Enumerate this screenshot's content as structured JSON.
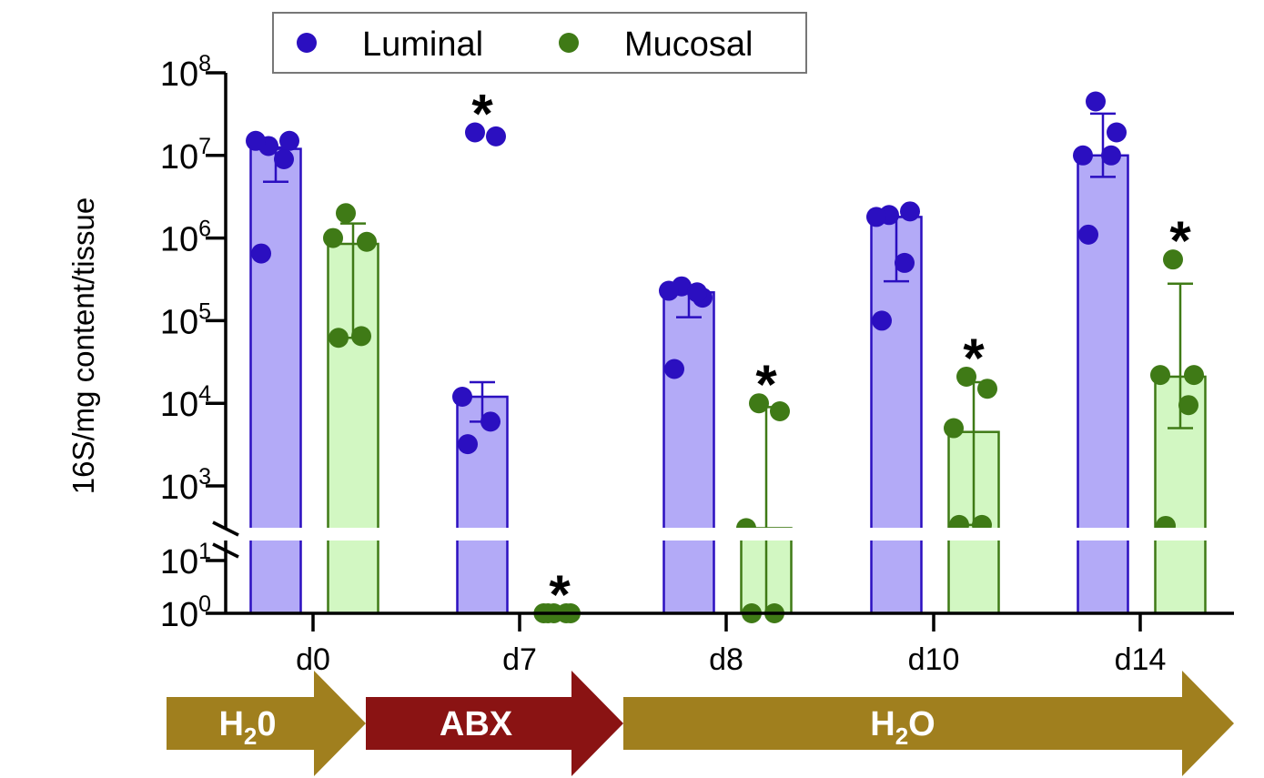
{
  "chart_data": {
    "type": "bar",
    "title": "",
    "xlabel": "",
    "ylabel": "16S/mg content/tissue",
    "yscale": "log",
    "axis_break": true,
    "upper_segment_range": [
      1000,
      100000000
    ],
    "lower_segment_range": [
      1,
      10
    ],
    "ytick_labels": [
      {
        "base": "10",
        "exp": "8",
        "value": 100000000
      },
      {
        "base": "10",
        "exp": "7",
        "value": 10000000
      },
      {
        "base": "10",
        "exp": "6",
        "value": 1000000
      },
      {
        "base": "10",
        "exp": "5",
        "value": 100000
      },
      {
        "base": "10",
        "exp": "4",
        "value": 10000
      },
      {
        "base": "10",
        "exp": "3",
        "value": 1000
      },
      {
        "base": "10",
        "exp": "1",
        "value": 10
      },
      {
        "base": "10",
        "exp": "0",
        "value": 1
      }
    ],
    "categories": [
      "d0",
      "d7",
      "d8",
      "d10",
      "d14"
    ],
    "legend_position": "top",
    "series": [
      {
        "name": "Luminal",
        "color": "#2b0fc0",
        "fill": "#b3aaf7",
        "values": [
          12000000,
          12000,
          220000,
          1800000,
          10000000
        ],
        "error_low": [
          4800000,
          6000,
          110000,
          300000,
          5500000
        ],
        "error_high": [
          12500000,
          18000,
          220000,
          1800000,
          32000000
        ],
        "points": [
          [
            13000000,
            15000000,
            15000000,
            9000000,
            650000
          ],
          [
            19000000,
            17000000,
            12000,
            6000,
            3200
          ],
          [
            260000,
            190000,
            230000,
            220000,
            26000
          ],
          [
            1900000,
            2100000,
            1800000,
            500000,
            100000
          ],
          [
            45000000,
            19000000,
            10000000,
            10000000,
            1100000
          ]
        ],
        "significant": [
          false,
          true,
          false,
          false,
          false
        ]
      },
      {
        "name": "Mucosal",
        "color": "#3f7a16",
        "fill": "#d2f7c2",
        "values": [
          850000,
          1,
          600,
          4500,
          21000
        ],
        "error_low": [
          62000,
          1,
          1,
          900,
          5000
        ],
        "error_high": [
          1500000,
          1,
          9000,
          18000,
          280000
        ],
        "points": [
          [
            2000000,
            900000,
            1000000,
            65000,
            62000
          ],
          [
            1,
            1,
            1,
            1,
            1
          ],
          [
            10000,
            8000,
            600,
            1,
            1
          ],
          [
            21000,
            15000,
            5000,
            900,
            900
          ],
          [
            550000,
            22000,
            22000,
            9500,
            800
          ]
        ],
        "significant": [
          false,
          true,
          true,
          true,
          true
        ]
      }
    ],
    "significance_symbol": "*"
  },
  "treatment_bar": [
    {
      "label_main": "H",
      "label_sub": "2",
      "label_tail": "0",
      "color": "#a07f1e"
    },
    {
      "label_main": "ABX",
      "label_sub": "",
      "label_tail": "",
      "color": "#8a1313"
    },
    {
      "label_main": "H",
      "label_sub": "2",
      "label_tail": "O",
      "color": "#a07f1e"
    }
  ]
}
